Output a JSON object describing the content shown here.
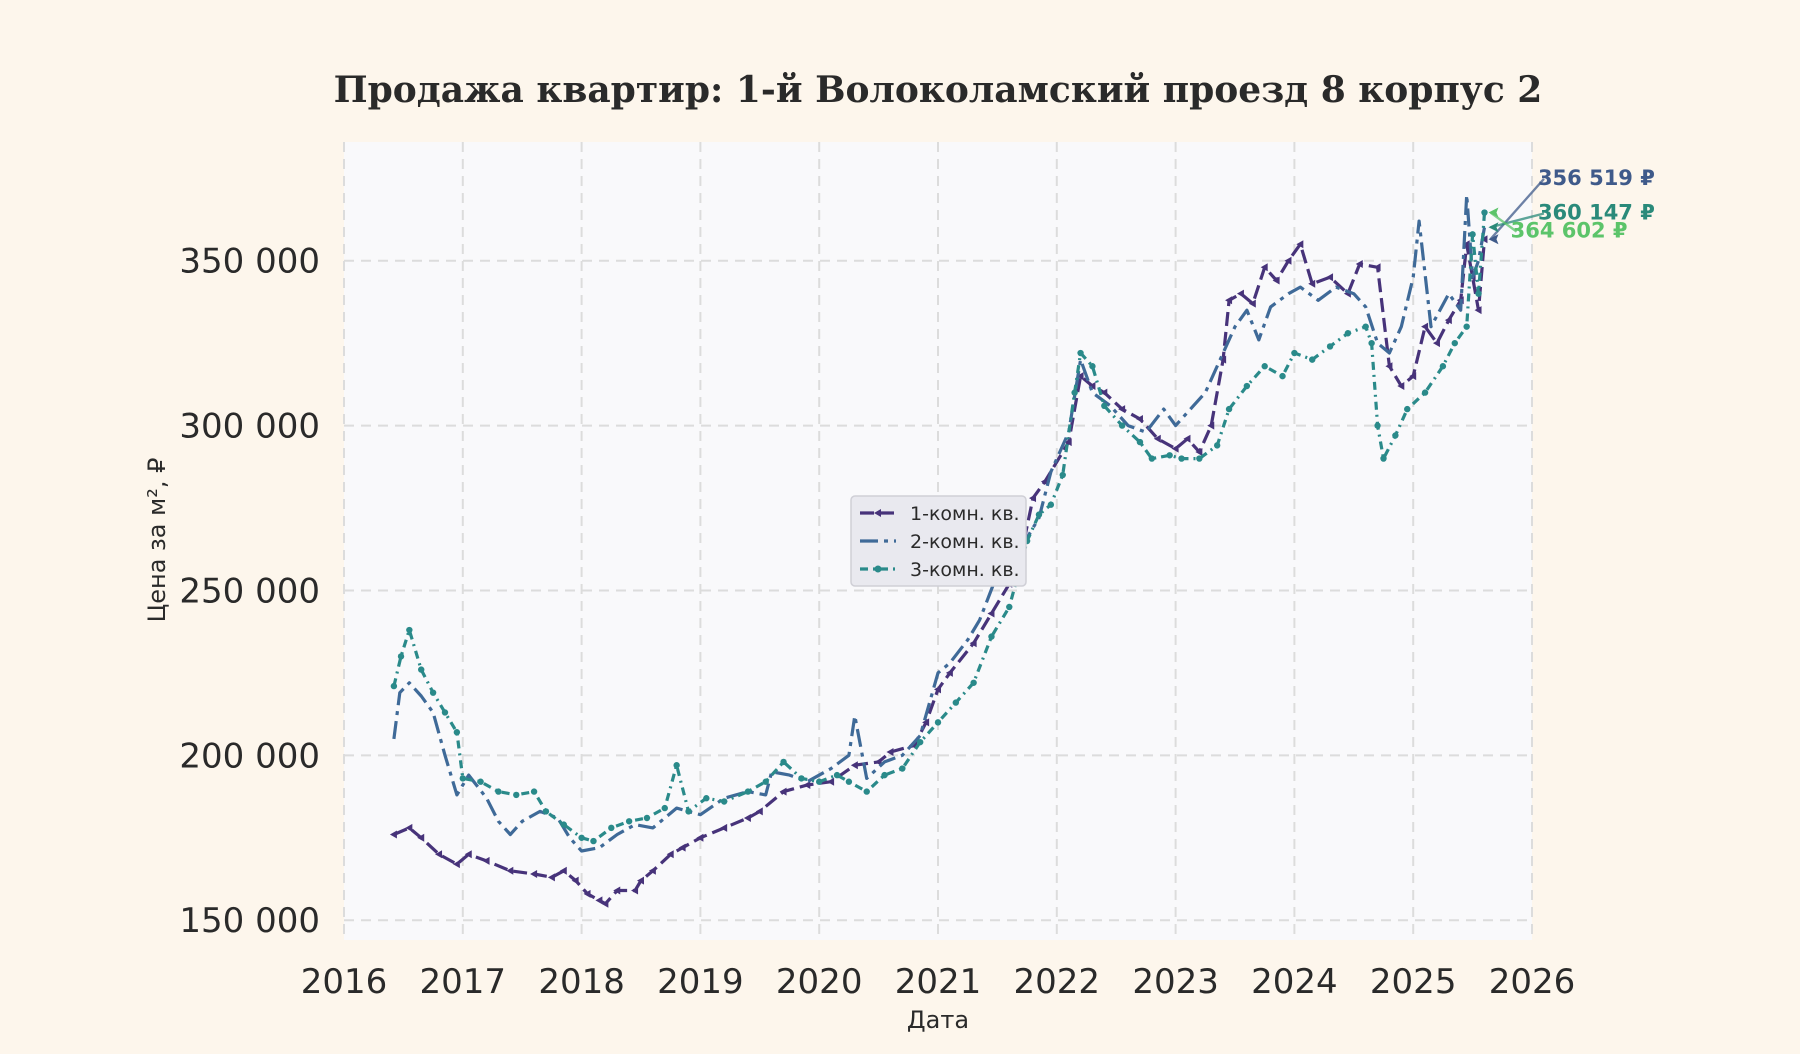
{
  "chart_data": {
    "type": "line",
    "title": "Продажа квартир: 1-й Волоколамский проезд 8 корпус 2",
    "xlabel": "Дата",
    "ylabel": "Цена за м², ₽",
    "xlim": [
      2016,
      2026
    ],
    "ylim": [
      144000,
      386000
    ],
    "xticks": [
      2016,
      2017,
      2018,
      2019,
      2020,
      2021,
      2022,
      2023,
      2024,
      2025,
      2026
    ],
    "xtick_labels": [
      "2016",
      "2017",
      "2018",
      "2019",
      "2020",
      "2021",
      "2022",
      "2023",
      "2024",
      "2025",
      "2026"
    ],
    "yticks": [
      150000,
      200000,
      250000,
      300000,
      350000
    ],
    "ytick_labels": [
      "150 000",
      "200 000",
      "250 000",
      "300 000",
      "350 000"
    ],
    "grid": true,
    "legend_position": "center",
    "series": [
      {
        "name": "1-комн. кв.",
        "color": "#47337a",
        "dash": "14 6",
        "marker": "triangle-left",
        "points": [
          [
            2016.42,
            176000
          ],
          [
            2016.55,
            178000
          ],
          [
            2016.65,
            175000
          ],
          [
            2016.8,
            170000
          ],
          [
            2016.95,
            167000
          ],
          [
            2017.05,
            170000
          ],
          [
            2017.2,
            168000
          ],
          [
            2017.4,
            165000
          ],
          [
            2017.6,
            164000
          ],
          [
            2017.75,
            163000
          ],
          [
            2017.85,
            165000
          ],
          [
            2017.95,
            162000
          ],
          [
            2018.05,
            158000
          ],
          [
            2018.15,
            156000
          ],
          [
            2018.2,
            155000
          ],
          [
            2018.3,
            159000
          ],
          [
            2018.45,
            159000
          ],
          [
            2018.5,
            162000
          ],
          [
            2018.6,
            165000
          ],
          [
            2018.75,
            170000
          ],
          [
            2018.85,
            172000
          ],
          [
            2019.0,
            175000
          ],
          [
            2019.2,
            178000
          ],
          [
            2019.4,
            181000
          ],
          [
            2019.5,
            183000
          ],
          [
            2019.7,
            189000
          ],
          [
            2019.9,
            191000
          ],
          [
            2020.1,
            192000
          ],
          [
            2020.3,
            197000
          ],
          [
            2020.5,
            198000
          ],
          [
            2020.6,
            201000
          ],
          [
            2020.8,
            203000
          ],
          [
            2020.9,
            210000
          ],
          [
            2021.0,
            220000
          ],
          [
            2021.1,
            225000
          ],
          [
            2021.3,
            234000
          ],
          [
            2021.45,
            243000
          ],
          [
            2021.6,
            252000
          ],
          [
            2021.7,
            261000
          ],
          [
            2021.8,
            278000
          ],
          [
            2021.9,
            283000
          ],
          [
            2022.1,
            295000
          ],
          [
            2022.2,
            315000
          ],
          [
            2022.3,
            312000
          ],
          [
            2022.4,
            310000
          ],
          [
            2022.55,
            305000
          ],
          [
            2022.7,
            302000
          ],
          [
            2022.85,
            296000
          ],
          [
            2023.0,
            293000
          ],
          [
            2023.1,
            296000
          ],
          [
            2023.2,
            292000
          ],
          [
            2023.3,
            300000
          ],
          [
            2023.4,
            320000
          ],
          [
            2023.45,
            338000
          ],
          [
            2023.55,
            340000
          ],
          [
            2023.65,
            337000
          ],
          [
            2023.75,
            348000
          ],
          [
            2023.85,
            344000
          ],
          [
            2023.95,
            350000
          ],
          [
            2024.05,
            355000
          ],
          [
            2024.15,
            343000
          ],
          [
            2024.3,
            345000
          ],
          [
            2024.45,
            340000
          ],
          [
            2024.55,
            349000
          ],
          [
            2024.7,
            348000
          ],
          [
            2024.8,
            318000
          ],
          [
            2024.9,
            312000
          ],
          [
            2025.0,
            315000
          ],
          [
            2025.1,
            330000
          ],
          [
            2025.2,
            325000
          ],
          [
            2025.3,
            332000
          ],
          [
            2025.4,
            338000
          ],
          [
            2025.45,
            355000
          ],
          [
            2025.5,
            345000
          ],
          [
            2025.55,
            335000
          ],
          [
            2025.6,
            356519
          ]
        ],
        "last_value_label": "356 519 ₽"
      },
      {
        "name": "2-комн. кв.",
        "color": "#3f6a98",
        "dash": "18 6 4 6",
        "marker": "none",
        "points": [
          [
            2016.42,
            205000
          ],
          [
            2016.47,
            219000
          ],
          [
            2016.55,
            222000
          ],
          [
            2016.65,
            218000
          ],
          [
            2016.75,
            213000
          ],
          [
            2016.85,
            200000
          ],
          [
            2016.95,
            188000
          ],
          [
            2017.05,
            194000
          ],
          [
            2017.2,
            187000
          ],
          [
            2017.3,
            180000
          ],
          [
            2017.4,
            176000
          ],
          [
            2017.5,
            180000
          ],
          [
            2017.65,
            183000
          ],
          [
            2017.8,
            181000
          ],
          [
            2017.9,
            175000
          ],
          [
            2018.0,
            171000
          ],
          [
            2018.15,
            172000
          ],
          [
            2018.3,
            176000
          ],
          [
            2018.45,
            179000
          ],
          [
            2018.6,
            178000
          ],
          [
            2018.7,
            181000
          ],
          [
            2018.8,
            184000
          ],
          [
            2019.0,
            182000
          ],
          [
            2019.2,
            187000
          ],
          [
            2019.4,
            189000
          ],
          [
            2019.55,
            188000
          ],
          [
            2019.6,
            195000
          ],
          [
            2019.75,
            194000
          ],
          [
            2019.9,
            192000
          ],
          [
            2020.1,
            196000
          ],
          [
            2020.25,
            200000
          ],
          [
            2020.3,
            212000
          ],
          [
            2020.4,
            193000
          ],
          [
            2020.55,
            198000
          ],
          [
            2020.7,
            200000
          ],
          [
            2020.85,
            206000
          ],
          [
            2021.0,
            225000
          ],
          [
            2021.1,
            228000
          ],
          [
            2021.25,
            235000
          ],
          [
            2021.35,
            241000
          ],
          [
            2021.5,
            255000
          ],
          [
            2021.65,
            258000
          ],
          [
            2021.75,
            266000
          ],
          [
            2021.85,
            272000
          ],
          [
            2021.95,
            286000
          ],
          [
            2022.1,
            298000
          ],
          [
            2022.2,
            320000
          ],
          [
            2022.3,
            310000
          ],
          [
            2022.45,
            306000
          ],
          [
            2022.6,
            300000
          ],
          [
            2022.75,
            298000
          ],
          [
            2022.9,
            305000
          ],
          [
            2023.0,
            300000
          ],
          [
            2023.15,
            306000
          ],
          [
            2023.25,
            310000
          ],
          [
            2023.4,
            322000
          ],
          [
            2023.5,
            330000
          ],
          [
            2023.6,
            335000
          ],
          [
            2023.7,
            326000
          ],
          [
            2023.8,
            336000
          ],
          [
            2023.95,
            340000
          ],
          [
            2024.05,
            342000
          ],
          [
            2024.2,
            338000
          ],
          [
            2024.35,
            342000
          ],
          [
            2024.5,
            340000
          ],
          [
            2024.6,
            336000
          ],
          [
            2024.7,
            325000
          ],
          [
            2024.8,
            322000
          ],
          [
            2024.9,
            330000
          ],
          [
            2025.0,
            345000
          ],
          [
            2025.05,
            362000
          ],
          [
            2025.15,
            330000
          ],
          [
            2025.3,
            340000
          ],
          [
            2025.4,
            335000
          ],
          [
            2025.45,
            370000
          ],
          [
            2025.5,
            345000
          ],
          [
            2025.55,
            350000
          ],
          [
            2025.6,
            360147
          ]
        ],
        "last_value_label": "360 147 ₽"
      },
      {
        "name": "3-комн. кв.",
        "color": "#2a8a8a",
        "dash": "8 5 2 5",
        "marker": "circle",
        "points": [
          [
            2016.42,
            221000
          ],
          [
            2016.48,
            230000
          ],
          [
            2016.55,
            238000
          ],
          [
            2016.65,
            226000
          ],
          [
            2016.75,
            219000
          ],
          [
            2016.85,
            213000
          ],
          [
            2016.95,
            207000
          ],
          [
            2017.0,
            193000
          ],
          [
            2017.15,
            192000
          ],
          [
            2017.3,
            189000
          ],
          [
            2017.45,
            188000
          ],
          [
            2017.6,
            189000
          ],
          [
            2017.7,
            183000
          ],
          [
            2017.85,
            179000
          ],
          [
            2018.0,
            175000
          ],
          [
            2018.1,
            174000
          ],
          [
            2018.25,
            178000
          ],
          [
            2018.4,
            180000
          ],
          [
            2018.55,
            181000
          ],
          [
            2018.7,
            184000
          ],
          [
            2018.8,
            197000
          ],
          [
            2018.9,
            183000
          ],
          [
            2019.05,
            187000
          ],
          [
            2019.2,
            186000
          ],
          [
            2019.4,
            189000
          ],
          [
            2019.55,
            192000
          ],
          [
            2019.7,
            198000
          ],
          [
            2019.85,
            193000
          ],
          [
            2020.0,
            192000
          ],
          [
            2020.15,
            194000
          ],
          [
            2020.25,
            192000
          ],
          [
            2020.4,
            189000
          ],
          [
            2020.55,
            194000
          ],
          [
            2020.7,
            196000
          ],
          [
            2020.85,
            204000
          ],
          [
            2021.0,
            210000
          ],
          [
            2021.15,
            216000
          ],
          [
            2021.3,
            222000
          ],
          [
            2021.45,
            236000
          ],
          [
            2021.6,
            245000
          ],
          [
            2021.75,
            265000
          ],
          [
            2021.85,
            273000
          ],
          [
            2021.95,
            276000
          ],
          [
            2022.05,
            285000
          ],
          [
            2022.15,
            310000
          ],
          [
            2022.2,
            322000
          ],
          [
            2022.3,
            318000
          ],
          [
            2022.4,
            306000
          ],
          [
            2022.55,
            300000
          ],
          [
            2022.7,
            295000
          ],
          [
            2022.8,
            290000
          ],
          [
            2022.95,
            291000
          ],
          [
            2023.05,
            290000
          ],
          [
            2023.2,
            290000
          ],
          [
            2023.35,
            294000
          ],
          [
            2023.45,
            305000
          ],
          [
            2023.6,
            312000
          ],
          [
            2023.75,
            318000
          ],
          [
            2023.9,
            315000
          ],
          [
            2024.0,
            322000
          ],
          [
            2024.15,
            320000
          ],
          [
            2024.3,
            324000
          ],
          [
            2024.45,
            328000
          ],
          [
            2024.6,
            330000
          ],
          [
            2024.65,
            325000
          ],
          [
            2024.7,
            300000
          ],
          [
            2024.75,
            290000
          ],
          [
            2024.85,
            297000
          ],
          [
            2024.95,
            305000
          ],
          [
            2025.1,
            310000
          ],
          [
            2025.25,
            318000
          ],
          [
            2025.35,
            325000
          ],
          [
            2025.45,
            330000
          ],
          [
            2025.5,
            358000
          ],
          [
            2025.55,
            340000
          ],
          [
            2025.6,
            364602
          ]
        ],
        "last_value_label": "364 602 ₽"
      }
    ],
    "annotations": [
      {
        "series": 0,
        "text": "356 519 ₽",
        "color": "#3f5a8a",
        "text_x": 2026.05,
        "text_y": 373000,
        "arrow": true
      },
      {
        "series": 1,
        "text": "360 147 ₽",
        "color": "#2a8a7a",
        "text_x": 2026.05,
        "text_y": 362500,
        "arrow": true
      },
      {
        "series": 2,
        "text": "364 602 ₽",
        "color": "#5cc46a",
        "text_x": 2025.82,
        "text_y": 357000,
        "arrow": true
      }
    ]
  }
}
